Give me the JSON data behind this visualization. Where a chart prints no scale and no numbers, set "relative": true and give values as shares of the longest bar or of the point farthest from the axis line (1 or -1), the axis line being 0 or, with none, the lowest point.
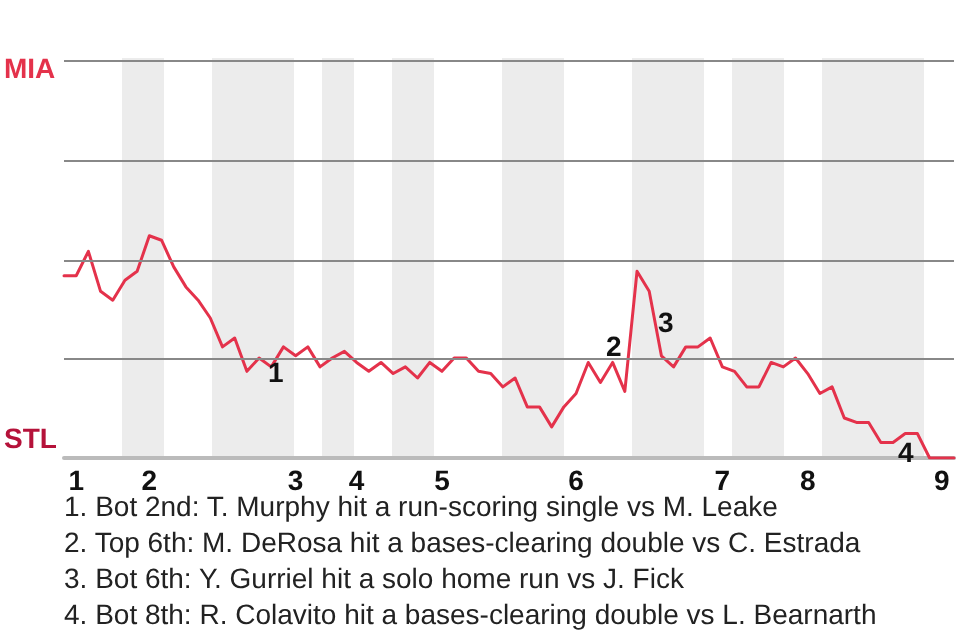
{
  "chart_data": {
    "type": "line",
    "relative": true,
    "categories": [
      null,
      "1",
      null,
      null,
      null,
      null,
      null,
      "2",
      null,
      null,
      null,
      null,
      null,
      null,
      null,
      null,
      null,
      null,
      null,
      "3",
      null,
      null,
      null,
      null,
      "4",
      null,
      null,
      null,
      null,
      null,
      null,
      "5",
      null,
      null,
      null,
      null,
      null,
      null,
      null,
      null,
      null,
      null,
      "6",
      null,
      null,
      null,
      null,
      null,
      null,
      null,
      null,
      null,
      null,
      null,
      "7",
      null,
      null,
      null,
      null,
      null,
      null,
      "8",
      null,
      null,
      null,
      null,
      null,
      null,
      null,
      null,
      null,
      null,
      "9",
      null
    ],
    "series": [
      {
        "color": "#e4324b",
        "values": [
          0.82,
          0.82,
          0.93,
          0.75,
          0.71,
          0.8,
          0.84,
          1,
          0.98,
          0.86,
          0.77,
          0.71,
          0.63,
          0.5,
          0.54,
          0.39,
          0.45,
          0.41,
          0.5,
          0.46,
          0.5,
          0.41,
          0.45,
          0.48,
          0.43,
          0.39,
          0.43,
          0.38,
          0.41,
          0.36,
          0.43,
          0.39,
          0.45,
          0.45,
          0.39,
          0.38,
          0.32,
          0.36,
          0.23,
          0.23,
          0.14,
          0.23,
          0.29,
          0.43,
          0.34,
          0.43,
          0.3,
          0.84,
          0.75,
          0.46,
          0.41,
          0.5,
          0.5,
          0.54,
          0.41,
          0.39,
          0.32,
          0.32,
          0.43,
          0.41,
          0.45,
          0.38,
          0.29,
          0.32,
          0.18,
          0.16,
          0.16,
          0.07,
          0.07,
          0.11,
          0.11,
          0,
          0,
          0
        ]
      }
    ],
    "ref_lines": [
      {
        "axis": "y",
        "value": 0.45,
        "color": "#888888"
      },
      {
        "axis": "y",
        "value": 0.89,
        "color": "#888888"
      },
      {
        "axis": "y",
        "value": 1.34,
        "color": "#888888"
      },
      {
        "axis": "y",
        "value": 1.79,
        "color": "#888888"
      }
    ],
    "marker": "none",
    "line_style": "solid",
    "annotations": [
      "MIA",
      "STL",
      "1",
      "2",
      "3",
      "4",
      "1. Bot 2nd: T. Murphy hit a run-scoring single vs M. Leake",
      "2. Top 6th: M. DeRosa hit a bases-clearing double vs C. Estrada",
      "3. Bot 6th: Y. Gurriel hit a solo home run vs J. Fick",
      "4. Bot 8th: R. Colavito hit a bases-clearing double vs L. Bearnarth"
    ]
  }
}
